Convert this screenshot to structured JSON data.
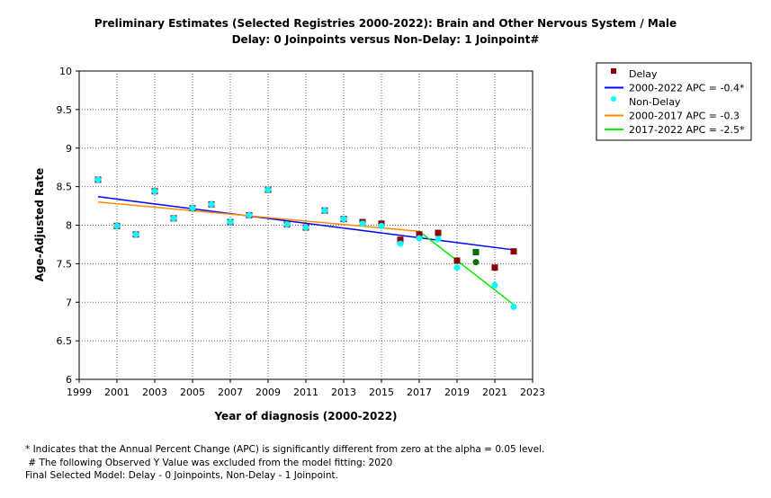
{
  "chart_data": {
    "type": "scatter",
    "title": "Preliminary Estimates (Selected Registries 2000-2022): Brain and Other Nervous System / Male",
    "subtitle": "Delay: 0 Joinpoints  versus  Non-Delay: 1 Joinpoint#",
    "xlabel": "Year of diagnosis (2000-2022)",
    "ylabel": "Age-Adjusted Rate",
    "xlim": [
      1999,
      2023
    ],
    "ylim": [
      6,
      10
    ],
    "xticks": [
      "1999",
      "2001",
      "2003",
      "2005",
      "2007",
      "2009",
      "2011",
      "2013",
      "2015",
      "2017",
      "2019",
      "2021",
      "2023"
    ],
    "yticks": [
      "6",
      "6.5",
      "7",
      "7.5",
      "8",
      "8.5",
      "9",
      "9.5",
      "10"
    ],
    "grid": true,
    "legend_position": "right",
    "series": [
      {
        "name": "Delay",
        "kind": "points",
        "color": "#8b0000",
        "marker": "square",
        "x": [
          2000,
          2001,
          2002,
          2003,
          2004,
          2005,
          2006,
          2007,
          2008,
          2009,
          2010,
          2011,
          2012,
          2013,
          2014,
          2015,
          2016,
          2017,
          2018,
          2019,
          2020,
          2021,
          2022
        ],
        "y": [
          8.59,
          7.99,
          7.88,
          8.44,
          8.09,
          8.22,
          8.27,
          8.04,
          8.13,
          8.46,
          8.01,
          7.97,
          8.19,
          8.08,
          8.04,
          8.02,
          7.81,
          7.88,
          7.9,
          7.54,
          7.65,
          7.45,
          7.66
        ]
      },
      {
        "name": "2000-2022 APC  =  -0.4*",
        "kind": "line",
        "color": "#0000ff",
        "x": [
          2000,
          2022
        ],
        "y": [
          8.37,
          7.68
        ]
      },
      {
        "name": "Non-Delay",
        "kind": "points",
        "color": "#00ffff",
        "marker": "circle",
        "x": [
          2000,
          2001,
          2002,
          2003,
          2004,
          2005,
          2006,
          2007,
          2008,
          2009,
          2010,
          2011,
          2012,
          2013,
          2014,
          2015,
          2016,
          2017,
          2018,
          2019,
          2020,
          2021,
          2022
        ],
        "y": [
          8.59,
          7.99,
          7.88,
          8.44,
          8.09,
          8.22,
          8.27,
          8.04,
          8.13,
          8.46,
          8.01,
          7.97,
          8.19,
          8.08,
          8.02,
          7.99,
          7.76,
          7.83,
          7.82,
          7.45,
          7.52,
          7.22,
          6.94
        ]
      },
      {
        "name": "2000-2017 APC  =  -0.3",
        "kind": "line",
        "color": "#ff8c00",
        "x": [
          2000,
          2017
        ],
        "y": [
          8.3,
          7.92
        ]
      },
      {
        "name": "2017-2022 APC  =  -2.5*",
        "kind": "line",
        "color": "#00ee00",
        "x": [
          2017,
          2022
        ],
        "y": [
          7.92,
          6.97
        ]
      }
    ],
    "excluded_year": 2020,
    "excluded_color": "#007000"
  },
  "footnotes": [
    "* Indicates that the Annual Percent Change (APC) is significantly different from zero at the alpha = 0.05 level.",
    " # The following Observed Y Value was excluded from the model fitting: 2020",
    "Final Selected Model: Delay - 0 Joinpoints, Non-Delay - 1 Joinpoint."
  ]
}
